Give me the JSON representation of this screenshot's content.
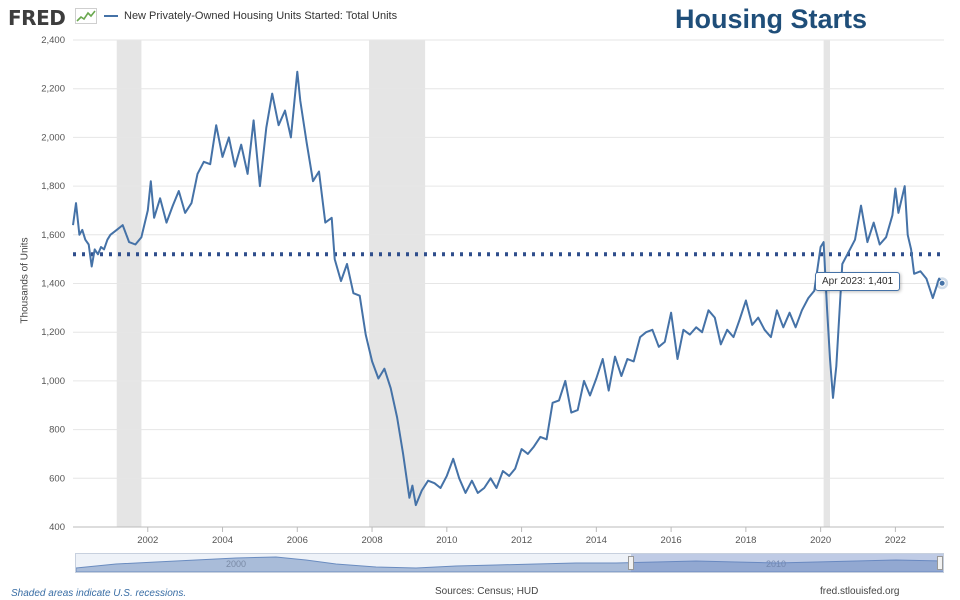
{
  "header": {
    "logo_text": "FRED",
    "series_legend": "New Privately-Owned Housing Units Started: Total Units",
    "overlay_title": "Housing Starts"
  },
  "tooltip": {
    "date": "Apr 2023:",
    "value": "1,401"
  },
  "footer": {
    "recession_note": "Shaded areas indicate U.S. recessions.",
    "sources": "Sources: Census; HUD",
    "site": "fred.stlouisfed.org"
  },
  "navigator": {
    "label_a": "2000",
    "label_b": "2010"
  },
  "colors": {
    "line": "#4572a7",
    "recession": "#e5e5e5",
    "reference_line": "#2f4e8c",
    "title": "#1f4e79"
  },
  "chart_data": {
    "type": "line",
    "ylabel": "Thousands of Units",
    "ylim": [
      400,
      2400
    ],
    "xlim": [
      2000.0,
      2023.3
    ],
    "yticks": [
      400,
      600,
      800,
      1000,
      1200,
      1400,
      1600,
      1800,
      2000,
      2200,
      2400
    ],
    "ytick_labels": [
      "400",
      "600",
      "800",
      "1,000",
      "1,200",
      "1,400",
      "1,600",
      "1,800",
      "2,000",
      "2,200",
      "2,400"
    ],
    "xticks": [
      2002,
      2004,
      2006,
      2008,
      2010,
      2012,
      2014,
      2016,
      2018,
      2020,
      2022
    ],
    "grid": true,
    "legend_position": "top-left",
    "recessions": [
      [
        2001.17,
        2001.83
      ],
      [
        2007.92,
        2009.42
      ],
      [
        2020.08,
        2020.25
      ]
    ],
    "reference_line": {
      "y": 1520,
      "style": "dotted"
    },
    "series": [
      {
        "name": "New Privately-Owned Housing Units Started: Total Units",
        "x": [
          2000.0,
          2000.08,
          2000.17,
          2000.25,
          2000.33,
          2000.42,
          2000.5,
          2000.58,
          2000.67,
          2000.75,
          2000.83,
          2000.92,
          2001.0,
          2001.17,
          2001.33,
          2001.5,
          2001.67,
          2001.83,
          2002.0,
          2002.08,
          2002.17,
          2002.33,
          2002.5,
          2002.67,
          2002.83,
          2003.0,
          2003.17,
          2003.33,
          2003.5,
          2003.67,
          2003.83,
          2004.0,
          2004.17,
          2004.33,
          2004.5,
          2004.67,
          2004.83,
          2005.0,
          2005.17,
          2005.33,
          2005.5,
          2005.67,
          2005.83,
          2006.0,
          2006.08,
          2006.25,
          2006.42,
          2006.58,
          2006.75,
          2006.92,
          2007.0,
          2007.17,
          2007.33,
          2007.5,
          2007.67,
          2007.83,
          2008.0,
          2008.17,
          2008.33,
          2008.5,
          2008.67,
          2008.83,
          2009.0,
          2009.08,
          2009.17,
          2009.33,
          2009.5,
          2009.67,
          2009.83,
          2010.0,
          2010.17,
          2010.33,
          2010.5,
          2010.67,
          2010.83,
          2011.0,
          2011.17,
          2011.33,
          2011.5,
          2011.67,
          2011.83,
          2012.0,
          2012.17,
          2012.33,
          2012.5,
          2012.67,
          2012.83,
          2013.0,
          2013.17,
          2013.33,
          2013.5,
          2013.67,
          2013.83,
          2014.0,
          2014.17,
          2014.33,
          2014.5,
          2014.67,
          2014.83,
          2015.0,
          2015.17,
          2015.33,
          2015.5,
          2015.67,
          2015.83,
          2016.0,
          2016.17,
          2016.33,
          2016.5,
          2016.67,
          2016.83,
          2017.0,
          2017.17,
          2017.33,
          2017.5,
          2017.67,
          2017.83,
          2018.0,
          2018.17,
          2018.33,
          2018.5,
          2018.67,
          2018.83,
          2019.0,
          2019.17,
          2019.33,
          2019.5,
          2019.67,
          2019.83,
          2020.0,
          2020.08,
          2020.17,
          2020.25,
          2020.33,
          2020.42,
          2020.58,
          2020.75,
          2020.92,
          2021.0,
          2021.08,
          2021.25,
          2021.42,
          2021.58,
          2021.75,
          2021.92,
          2022.0,
          2022.08,
          2022.25,
          2022.33,
          2022.42,
          2022.5,
          2022.67,
          2022.83,
          2023.0,
          2023.17,
          2023.25
        ],
        "y": [
          1640,
          1730,
          1600,
          1620,
          1580,
          1560,
          1470,
          1540,
          1520,
          1550,
          1540,
          1580,
          1600,
          1620,
          1640,
          1570,
          1560,
          1590,
          1700,
          1820,
          1670,
          1750,
          1650,
          1720,
          1780,
          1690,
          1730,
          1850,
          1900,
          1890,
          2050,
          1920,
          2000,
          1880,
          1970,
          1850,
          2070,
          1800,
          2040,
          2180,
          2050,
          2110,
          2000,
          2270,
          2150,
          1980,
          1820,
          1860,
          1650,
          1670,
          1500,
          1410,
          1480,
          1360,
          1350,
          1190,
          1080,
          1010,
          1050,
          970,
          850,
          700,
          520,
          570,
          490,
          550,
          590,
          580,
          560,
          610,
          680,
          600,
          540,
          590,
          540,
          560,
          600,
          560,
          630,
          610,
          640,
          720,
          700,
          730,
          770,
          760,
          910,
          920,
          1000,
          870,
          880,
          1000,
          940,
          1010,
          1090,
          960,
          1100,
          1020,
          1090,
          1080,
          1180,
          1200,
          1210,
          1140,
          1160,
          1280,
          1090,
          1210,
          1190,
          1220,
          1200,
          1290,
          1260,
          1150,
          1210,
          1180,
          1250,
          1330,
          1230,
          1260,
          1210,
          1180,
          1290,
          1220,
          1280,
          1220,
          1290,
          1340,
          1370,
          1550,
          1570,
          1300,
          1090,
          930,
          1060,
          1480,
          1530,
          1580,
          1650,
          1720,
          1570,
          1650,
          1560,
          1590,
          1680,
          1790,
          1690,
          1800,
          1600,
          1540,
          1440,
          1450,
          1420,
          1340,
          1420,
          1401
        ]
      }
    ]
  }
}
